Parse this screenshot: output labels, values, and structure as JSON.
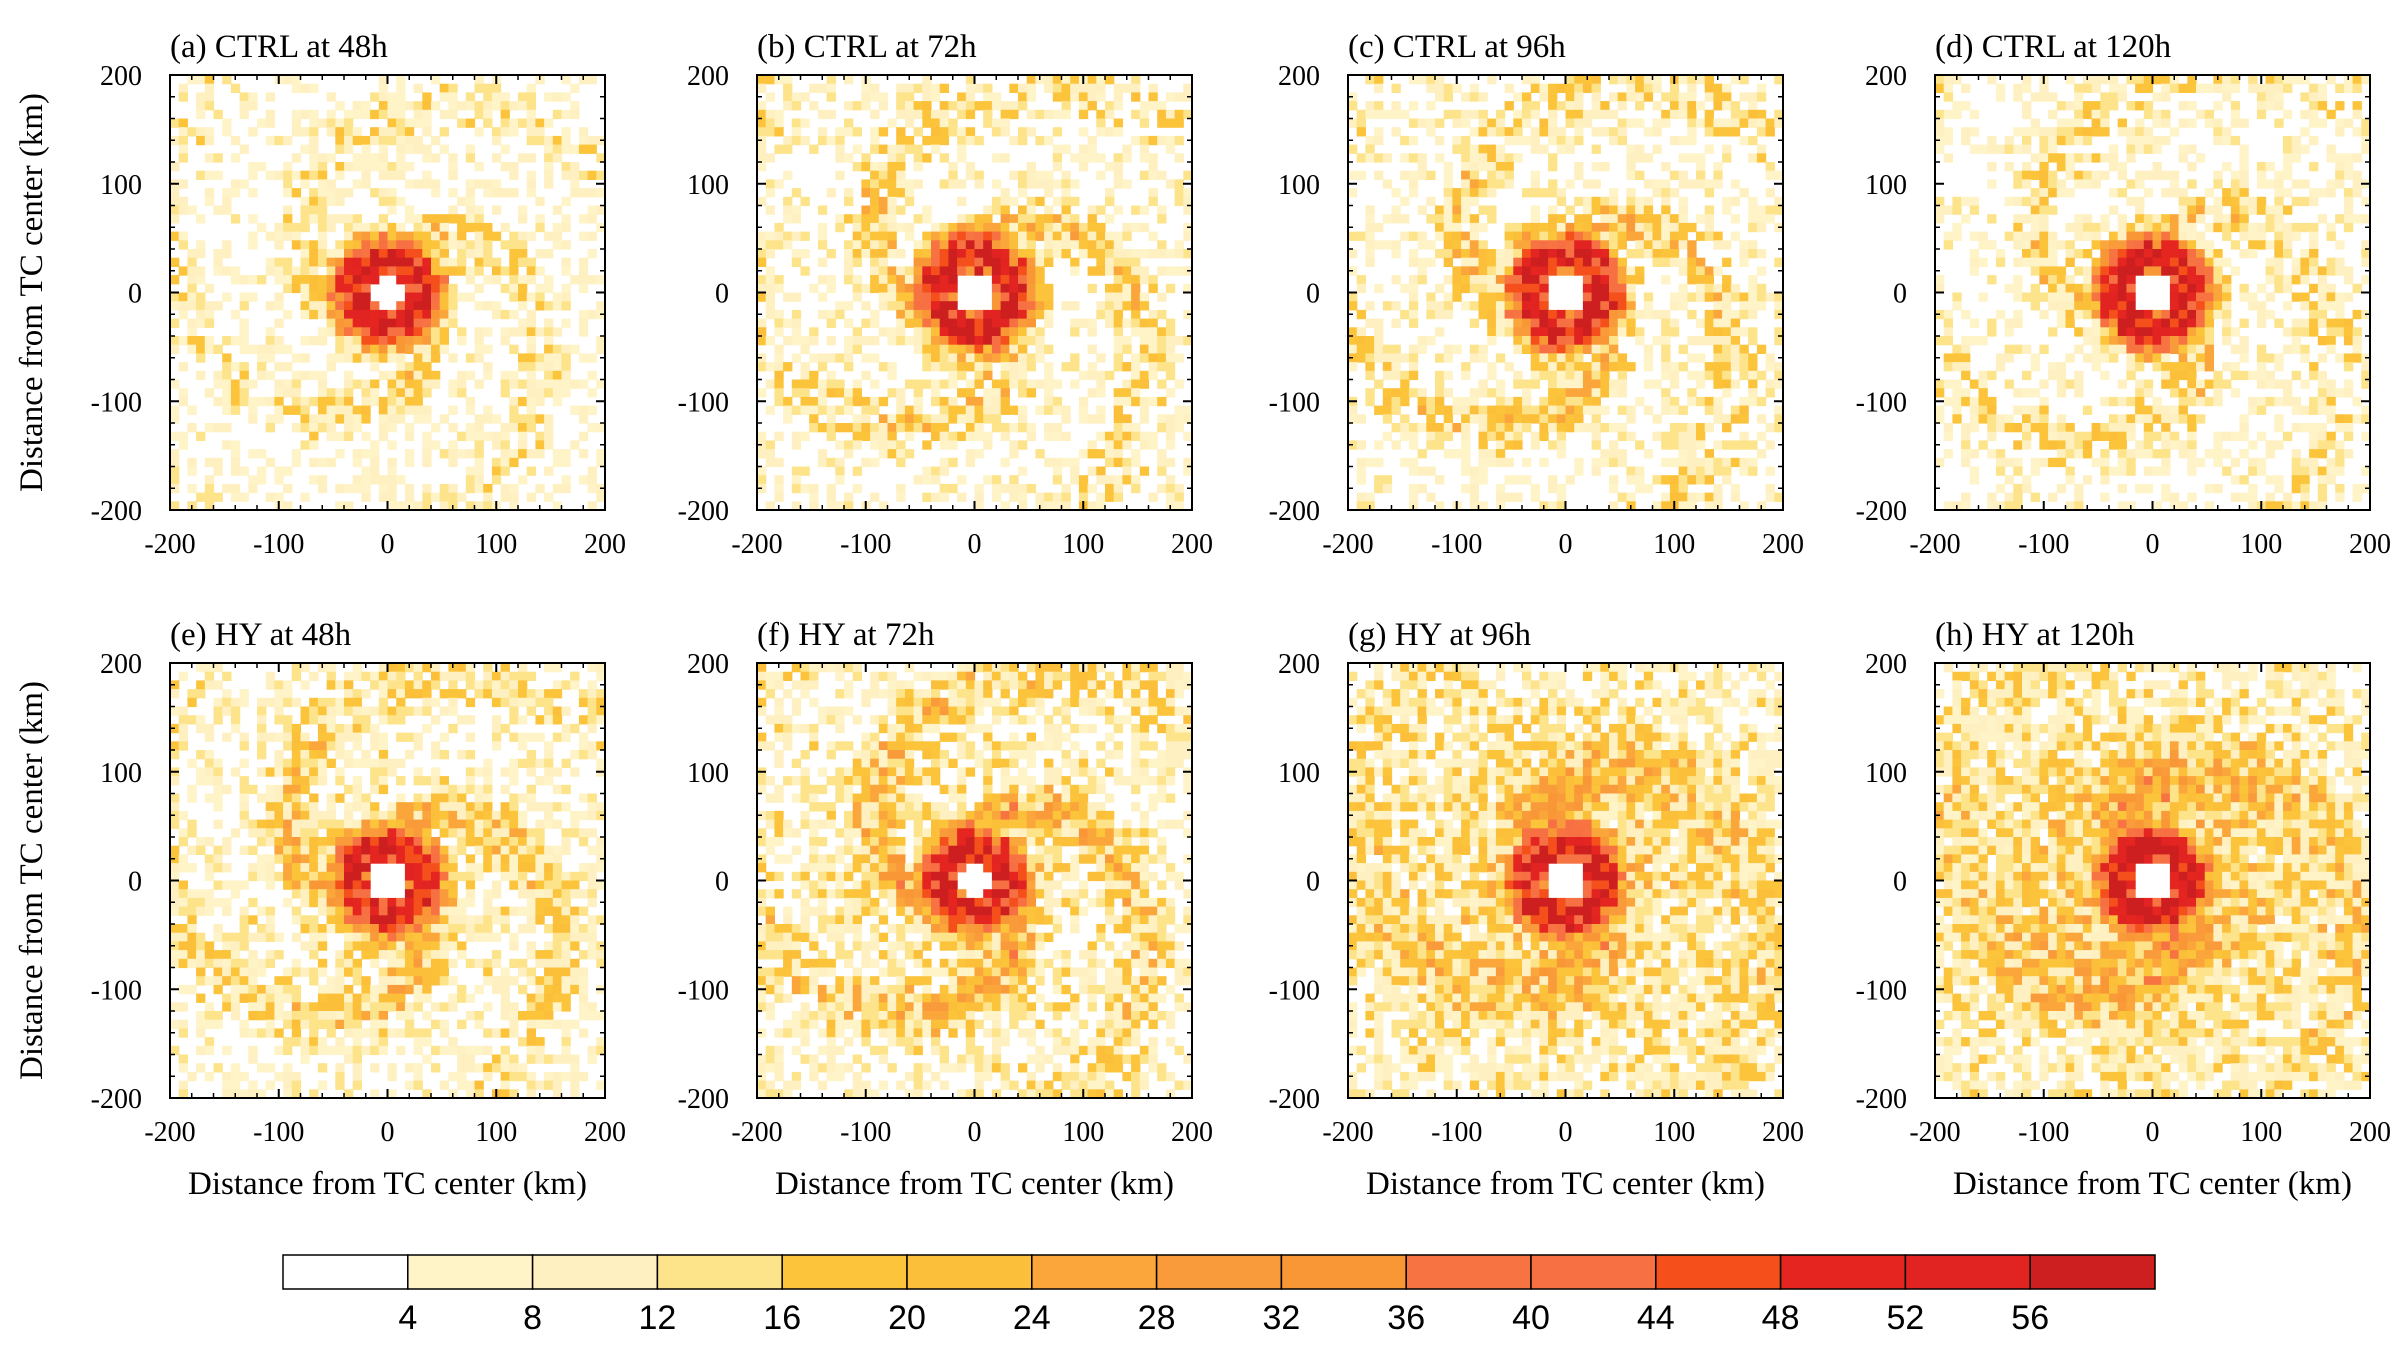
{
  "chart_data": [
    {
      "type": "heatmap",
      "title": "(a) CTRL at 48h",
      "experiment": "CTRL",
      "time": "48h",
      "xlabel": "",
      "ylabel": "Distance from TC center (km)",
      "xlim": [
        -200,
        200
      ],
      "ylim": [
        -200,
        200
      ],
      "xticks": [
        "-200",
        "-100",
        "0",
        "100",
        "200"
      ],
      "yticks": [
        "200",
        "100",
        "0",
        "-100",
        "-200"
      ],
      "field": {
        "eye_radius_km": 16,
        "eyewall_peak": 56,
        "background": 4,
        "decay_km": 60,
        "arm_count": 3,
        "arm_strength": 18,
        "wind": 0.022,
        "noise": 12,
        "seed": 11
      }
    },
    {
      "type": "heatmap",
      "title": "(b) CTRL at 72h",
      "experiment": "CTRL",
      "time": "72h",
      "xlabel": "",
      "ylabel": "",
      "xlim": [
        -200,
        200
      ],
      "ylim": [
        -200,
        200
      ],
      "xticks": [
        "-200",
        "-100",
        "0",
        "100",
        "200"
      ],
      "yticks": [
        "200",
        "100",
        "0",
        "-100",
        "-200"
      ],
      "field": {
        "eye_radius_km": 20,
        "eyewall_peak": 56,
        "background": 6,
        "decay_km": 70,
        "arm_count": 3,
        "arm_strength": 22,
        "wind": 0.02,
        "noise": 14,
        "seed": 23
      }
    },
    {
      "type": "heatmap",
      "title": "(c) CTRL at 96h",
      "experiment": "CTRL",
      "time": "96h",
      "xlabel": "",
      "ylabel": "",
      "xlim": [
        -200,
        200
      ],
      "ylim": [
        -200,
        200
      ],
      "xticks": [
        "-200",
        "-100",
        "0",
        "100",
        "200"
      ],
      "yticks": [
        "200",
        "100",
        "0",
        "-100",
        "-200"
      ],
      "field": {
        "eye_radius_km": 20,
        "eyewall_peak": 56,
        "background": 6,
        "decay_km": 75,
        "arm_count": 3,
        "arm_strength": 22,
        "wind": 0.02,
        "noise": 14,
        "seed": 37
      }
    },
    {
      "type": "heatmap",
      "title": "(d) CTRL at 120h",
      "experiment": "CTRL",
      "time": "120h",
      "xlabel": "",
      "ylabel": "",
      "xlim": [
        -200,
        200
      ],
      "ylim": [
        -200,
        200
      ],
      "xticks": [
        "-200",
        "-100",
        "0",
        "100",
        "200"
      ],
      "yticks": [
        "200",
        "100",
        "0",
        "-100",
        "-200"
      ],
      "field": {
        "eye_radius_km": 18,
        "eyewall_peak": 58,
        "background": 5,
        "decay_km": 80,
        "arm_count": 3,
        "arm_strength": 20,
        "wind": 0.018,
        "noise": 13,
        "seed": 41
      }
    },
    {
      "type": "heatmap",
      "title": "(e) HY at 48h",
      "experiment": "HY",
      "time": "48h",
      "xlabel": "Distance from TC center (km)",
      "ylabel": "Distance from TC center (km)",
      "xlim": [
        -200,
        200
      ],
      "ylim": [
        -200,
        200
      ],
      "xticks": [
        "-200",
        "-100",
        "0",
        "100",
        "200"
      ],
      "yticks": [
        "200",
        "100",
        "0",
        "-100",
        "-200"
      ],
      "field": {
        "eye_radius_km": 18,
        "eyewall_peak": 54,
        "background": 14,
        "decay_km": 110,
        "arm_count": 3,
        "arm_strength": 20,
        "wind": 0.02,
        "noise": 12,
        "seed": 53
      }
    },
    {
      "type": "heatmap",
      "title": "(f) HY at 72h",
      "experiment": "HY",
      "time": "72h",
      "xlabel": "Distance from TC center (km)",
      "ylabel": "",
      "xlim": [
        -200,
        200
      ],
      "ylim": [
        -200,
        200
      ],
      "xticks": [
        "-200",
        "-100",
        "0",
        "100",
        "200"
      ],
      "yticks": [
        "200",
        "100",
        "0",
        "-100",
        "-200"
      ],
      "field": {
        "eye_radius_km": 16,
        "eyewall_peak": 56,
        "background": 16,
        "decay_km": 120,
        "arm_count": 3,
        "arm_strength": 24,
        "wind": 0.02,
        "noise": 13,
        "seed": 67
      }
    },
    {
      "type": "heatmap",
      "title": "(g) HY at 96h",
      "experiment": "HY",
      "time": "96h",
      "xlabel": "Distance from TC center (km)",
      "ylabel": "",
      "xlim": [
        -200,
        200
      ],
      "ylim": [
        -200,
        200
      ],
      "xticks": [
        "-200",
        "-100",
        "0",
        "100",
        "200"
      ],
      "yticks": [
        "200",
        "100",
        "0",
        "-100",
        "-200"
      ],
      "field": {
        "eye_radius_km": 20,
        "eyewall_peak": 56,
        "background": 24,
        "decay_km": 150,
        "arm_count": 2,
        "arm_strength": 16,
        "wind": 0.016,
        "noise": 12,
        "seed": 79
      }
    },
    {
      "type": "heatmap",
      "title": "(h) HY at 120h",
      "experiment": "HY",
      "time": "120h",
      "xlabel": "Distance from TC center (km)",
      "ylabel": "",
      "xlim": [
        -200,
        200
      ],
      "ylim": [
        -200,
        200
      ],
      "xticks": [
        "-200",
        "-100",
        "0",
        "100",
        "200"
      ],
      "yticks": [
        "200",
        "100",
        "0",
        "-100",
        "-200"
      ],
      "field": {
        "eye_radius_km": 18,
        "eyewall_peak": 56,
        "background": 26,
        "decay_km": 160,
        "arm_count": 2,
        "arm_strength": 16,
        "wind": 0.016,
        "noise": 12,
        "seed": 97
      }
    }
  ],
  "colorbar": {
    "levels": [
      4,
      8,
      12,
      16,
      20,
      24,
      28,
      32,
      36,
      40,
      44,
      48,
      52,
      56
    ],
    "labels": [
      "4",
      "8",
      "12",
      "16",
      "20",
      "24",
      "28",
      "32",
      "36",
      "40",
      "44",
      "48",
      "52",
      "56"
    ],
    "colors": [
      "#ffffff",
      "#fff3c8",
      "#fff0c2",
      "#fde38a",
      "#fcc43b",
      "#fbbf3a",
      "#fba63b",
      "#f99b3a",
      "#f99737",
      "#f77442",
      "#f77043",
      "#f5501c",
      "#e42520",
      "#e12422",
      "#cd1f1f"
    ]
  }
}
